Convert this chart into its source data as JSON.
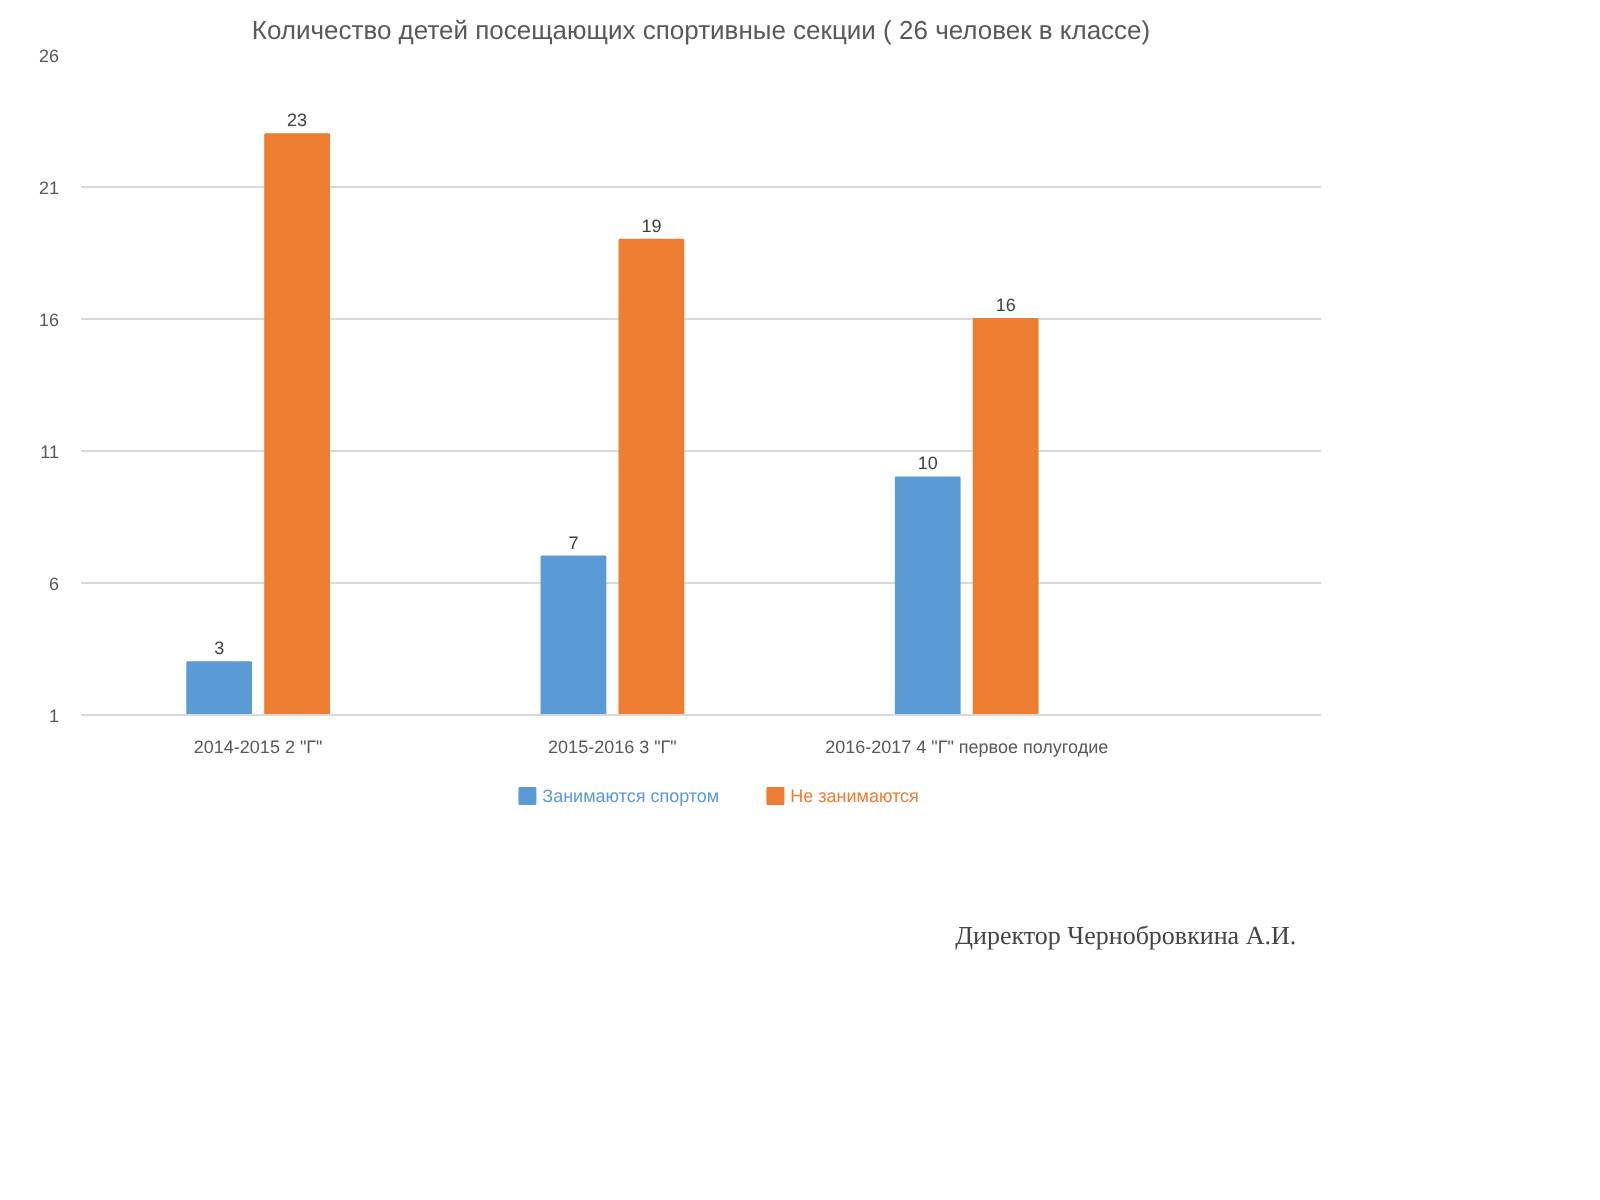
{
  "chart_data": {
    "type": "bar",
    "title": "Количество детей посещающих спортивные секции ( 26 человек в классе)",
    "categories": [
      "2014-2015 2 \"Г\"",
      "2015-2016 3 \"Г\"",
      "2016-2017 4 \"Г\" первое полугодие"
    ],
    "series": [
      {
        "name": "Занимаются спортом",
        "color": "#5b9bd5",
        "values": [
          3,
          7,
          10
        ]
      },
      {
        "name": "Не занимаются",
        "color": "#ed7d31",
        "values": [
          23,
          19,
          16
        ]
      }
    ],
    "ylim": [
      1,
      26
    ],
    "yticks": [
      1,
      6,
      11,
      16,
      21,
      26
    ],
    "grid": "y",
    "legend": "bottom",
    "data_labels": true,
    "annotations": [
      "Директор Чернобровкина А.И."
    ]
  }
}
